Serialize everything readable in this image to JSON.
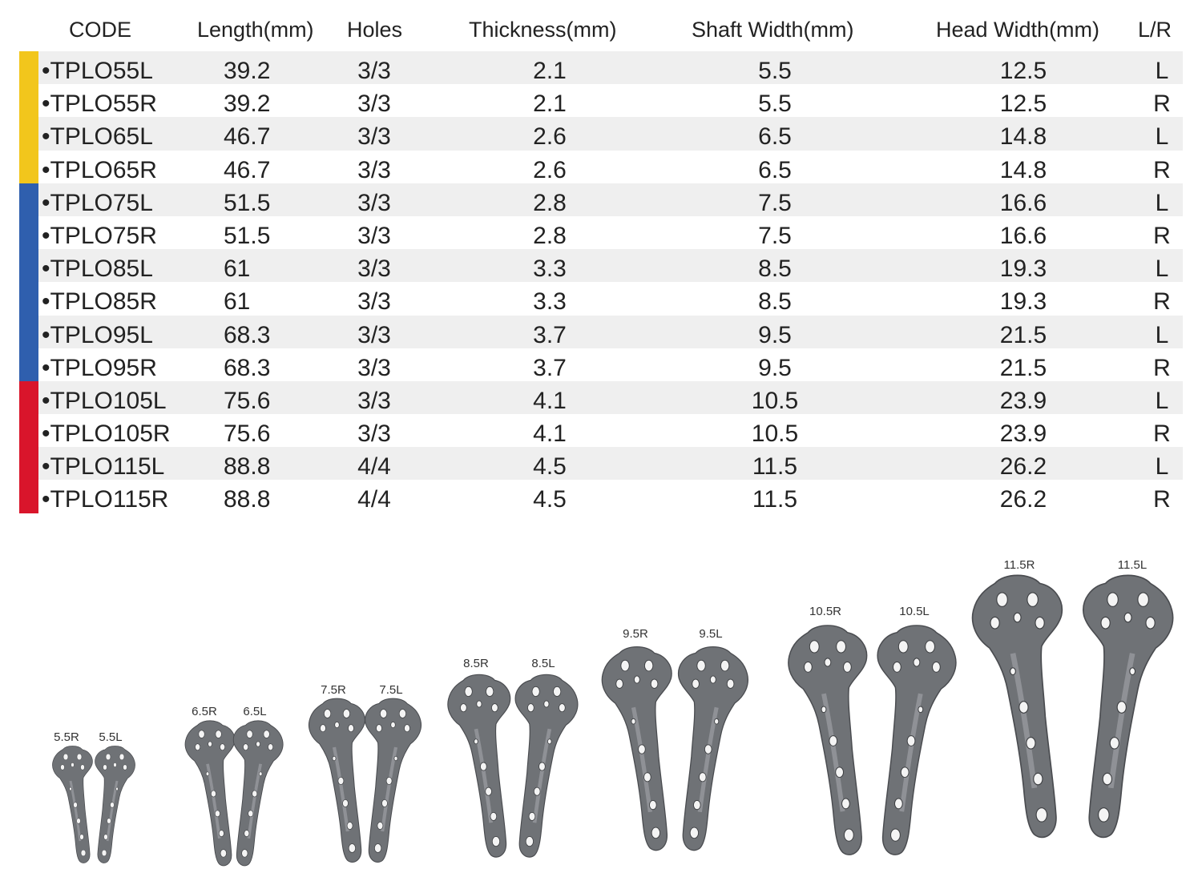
{
  "table": {
    "headers": [
      "CODE",
      "Length(mm)",
      "Holes",
      "Thickness(mm)",
      "Shaft Width(mm)",
      "Head Width(mm)",
      "L/R"
    ],
    "groups": [
      {
        "color": "#f2c61c",
        "rows": [
          0,
          1,
          2,
          3
        ]
      },
      {
        "color": "#2f5fae",
        "rows": [
          4,
          5,
          6,
          7,
          8,
          9
        ]
      },
      {
        "color": "#d9152b",
        "rows": [
          10,
          11,
          12,
          13
        ]
      }
    ],
    "rows": [
      [
        "•TPLO55L",
        "39.2",
        "3/3",
        "2.1",
        "5.5",
        "12.5",
        "L"
      ],
      [
        "•TPLO55R",
        "39.2",
        "3/3",
        "2.1",
        "5.5",
        "12.5",
        "R"
      ],
      [
        "•TPLO65L",
        "46.7",
        "3/3",
        "2.6",
        "6.5",
        "14.8",
        "L"
      ],
      [
        "•TPLO65R",
        "46.7",
        "3/3",
        "2.6",
        "6.5",
        "14.8",
        "R"
      ],
      [
        "•TPLO75L",
        "51.5",
        "3/3",
        "2.8",
        "7.5",
        "16.6",
        "L"
      ],
      [
        "•TPLO75R",
        "51.5",
        "3/3",
        "2.8",
        "7.5",
        "16.6",
        "R"
      ],
      [
        "•TPLO85L",
        "61",
        "3/3",
        "3.3",
        "8.5",
        "19.3",
        "L"
      ],
      [
        "•TPLO85R",
        "61",
        "3/3",
        "3.3",
        "8.5",
        "19.3",
        "R"
      ],
      [
        "•TPLO95L",
        "68.3",
        "3/3",
        "3.7",
        "9.5",
        "21.5",
        "L"
      ],
      [
        "•TPLO95R",
        "68.3",
        "3/3",
        "3.7",
        "9.5",
        "21.5",
        "R"
      ],
      [
        "•TPLO105L",
        "75.6",
        "3/3",
        "4.1",
        "10.5",
        "23.9",
        "L"
      ],
      [
        "•TPLO105R",
        "75.6",
        "3/3",
        "4.1",
        "10.5",
        "23.9",
        "R"
      ],
      [
        "•TPLO115L",
        "88.8",
        "4/4",
        "4.5",
        "11.5",
        "26.2",
        "L"
      ],
      [
        "•TPLO115R",
        "88.8",
        "4/4",
        "4.5",
        "11.5",
        "26.2",
        "R"
      ]
    ]
  },
  "plates": {
    "labels": [
      "5.5R",
      "5.5L",
      "6.5R",
      "6.5L",
      "7.5R",
      "7.5L",
      "8.5R",
      "8.5L",
      "9.5R",
      "9.5L",
      "10.5R",
      "10.5L",
      "11.5R",
      "11.5L"
    ],
    "metal_color": "#6f7276"
  }
}
